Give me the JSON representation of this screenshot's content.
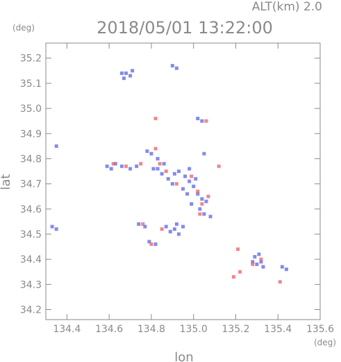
{
  "header": {
    "altitude_label": "ALT(km)  2.0",
    "timestamp": "2018/05/01 13:22:00"
  },
  "colors": {
    "axis": "#8a8a8a",
    "positive": "#e8606a",
    "negative": "#5a64e6",
    "background": "#ffffff"
  },
  "chart_data": {
    "type": "scatter",
    "title": "2018/05/01 13:22:00",
    "subtitle": "ALT(km)  2.0",
    "xlabel": "lon",
    "ylabel": "lat",
    "x_unit": "(deg)",
    "y_unit": "(deg)",
    "xlim": [
      134.3,
      135.6
    ],
    "ylim": [
      34.16,
      35.26
    ],
    "x_ticks": [
      "134.4",
      "134.6",
      "134.8",
      "135.0",
      "135.2",
      "135.4",
      "135.6"
    ],
    "y_ticks": [
      "34.2",
      "34.3",
      "34.4",
      "34.5",
      "34.6",
      "34.7",
      "34.8",
      "34.9",
      "35.0",
      "35.1",
      "35.2"
    ],
    "grid": false,
    "series": [
      {
        "color": "#5a64e6",
        "points": [
          [
            134.68,
            35.14
          ],
          [
            134.7,
            35.13
          ],
          [
            134.67,
            35.12
          ],
          [
            134.71,
            35.15
          ],
          [
            134.66,
            35.14
          ],
          [
            134.92,
            35.16
          ],
          [
            134.9,
            35.17
          ],
          [
            134.35,
            34.85
          ],
          [
            134.59,
            34.77
          ],
          [
            134.61,
            34.76
          ],
          [
            134.63,
            34.78
          ],
          [
            134.66,
            34.77
          ],
          [
            134.7,
            34.76
          ],
          [
            134.73,
            34.77
          ],
          [
            134.78,
            34.83
          ],
          [
            134.8,
            34.82
          ],
          [
            134.83,
            34.8
          ],
          [
            134.81,
            34.76
          ],
          [
            134.85,
            34.74
          ],
          [
            134.88,
            34.72
          ],
          [
            134.91,
            34.74
          ],
          [
            134.93,
            34.75
          ],
          [
            134.96,
            34.73
          ],
          [
            134.98,
            34.71
          ],
          [
            135.0,
            34.69
          ],
          [
            134.97,
            34.66
          ],
          [
            135.02,
            34.66
          ],
          [
            135.04,
            34.64
          ],
          [
            135.06,
            34.63
          ],
          [
            135.03,
            34.6
          ],
          [
            135.05,
            34.58
          ],
          [
            135.08,
            34.57
          ],
          [
            134.99,
            34.62
          ],
          [
            134.95,
            34.68
          ],
          [
            134.9,
            34.7
          ],
          [
            134.86,
            34.78
          ],
          [
            134.83,
            34.76
          ],
          [
            134.87,
            34.53
          ],
          [
            134.89,
            34.51
          ],
          [
            134.91,
            34.52
          ],
          [
            134.93,
            34.5
          ],
          [
            134.92,
            34.54
          ],
          [
            134.95,
            34.53
          ],
          [
            134.79,
            34.47
          ],
          [
            134.82,
            34.46
          ],
          [
            134.74,
            34.54
          ],
          [
            134.77,
            34.53
          ],
          [
            135.28,
            34.39
          ],
          [
            135.3,
            34.38
          ],
          [
            135.32,
            34.39
          ],
          [
            135.33,
            34.37
          ],
          [
            135.29,
            34.41
          ],
          [
            135.31,
            34.42
          ],
          [
            135.44,
            34.36
          ],
          [
            135.42,
            34.37
          ],
          [
            134.33,
            34.53
          ],
          [
            134.35,
            34.52
          ],
          [
            135.02,
            34.96
          ],
          [
            135.04,
            34.95
          ],
          [
            135.05,
            34.82
          ],
          [
            134.98,
            34.76
          ],
          [
            135.01,
            34.72
          ]
        ]
      },
      {
        "color": "#e8606a",
        "points": [
          [
            134.62,
            34.78
          ],
          [
            134.68,
            34.77
          ],
          [
            134.75,
            34.78
          ],
          [
            134.82,
            34.84
          ],
          [
            134.84,
            34.78
          ],
          [
            134.87,
            34.75
          ],
          [
            134.92,
            34.7
          ],
          [
            134.99,
            34.73
          ],
          [
            135.02,
            34.67
          ],
          [
            135.04,
            34.62
          ],
          [
            135.07,
            34.65
          ],
          [
            135.03,
            34.58
          ],
          [
            134.82,
            34.96
          ],
          [
            135.06,
            34.95
          ],
          [
            135.12,
            34.77
          ],
          [
            134.85,
            34.52
          ],
          [
            134.8,
            34.46
          ],
          [
            134.76,
            34.54
          ],
          [
            135.21,
            34.44
          ],
          [
            135.22,
            34.35
          ],
          [
            135.19,
            34.33
          ],
          [
            135.28,
            34.38
          ],
          [
            135.32,
            34.4
          ],
          [
            135.41,
            34.31
          ]
        ]
      }
    ]
  }
}
